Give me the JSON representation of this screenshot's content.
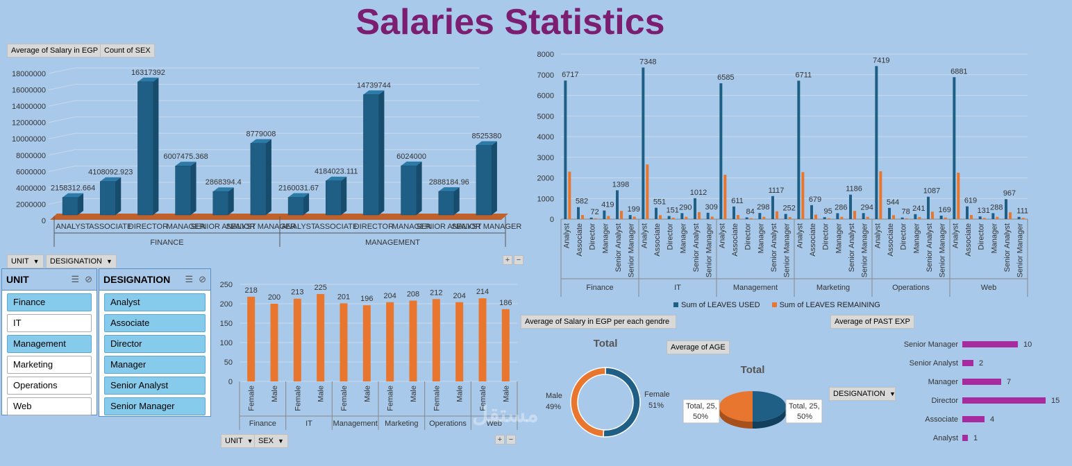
{
  "title": "Salaries Statistics",
  "colors": {
    "blue": "#1f5f86",
    "orange": "#e8762e",
    "purple": "#a62b9e",
    "title": "#7b1d70"
  },
  "chart1": {
    "field_buttons": [
      "Average of Salary in EGP",
      "Count of SEX"
    ],
    "bottom_buttons": [
      "UNIT",
      "DESIGNATION"
    ],
    "chart_data": {
      "type": "bar",
      "title": "",
      "groups": [
        "FINANCE",
        "MANAGEMENT"
      ],
      "categories": [
        "ANALYST",
        "ASSOCIATE",
        "DIRECTOR",
        "MANAGER",
        "SENIOR ANALYST",
        "SENIOR MANAGER",
        "ANALYST",
        "ASSOCIATE",
        "DIRECTOR",
        "MANAGER",
        "SENIOR ANALYST",
        "SENIOR MANAGER"
      ],
      "values": [
        2158312.664,
        4108092.923,
        16317392,
        6007475.368,
        2868394.4,
        8779008,
        2160031.67,
        4184023.111,
        14739744,
        6024000,
        2888184.96,
        8525380
      ],
      "value_labels": [
        "2158312.664",
        "4108092.923",
        "16317392",
        "6007475.368",
        "2868394.4",
        "8779008",
        "2160031.67",
        "4184023.111",
        "14739744",
        "6024000",
        "2888184.96",
        "8525380"
      ],
      "ylim": [
        0,
        18000000
      ],
      "yticks": [
        "0",
        "2000000",
        "4000000",
        "6000000",
        "8000000",
        "10000000",
        "12000000",
        "14000000",
        "16000000",
        "18000000"
      ]
    }
  },
  "chart2": {
    "chart_data": {
      "type": "bar",
      "groups": [
        "Finance",
        "IT",
        "Management",
        "Marketing",
        "Operations",
        "Web"
      ],
      "categories": [
        "Analyst",
        "Associate",
        "Director",
        "Manager",
        "Senior Analyst",
        "Senior Manager"
      ],
      "series": [
        {
          "name": "Sum of LEAVES USED",
          "values": [
            [
              6717,
              582,
              72,
              419,
              1398,
              199
            ],
            [
              7348,
              551,
              151,
              290,
              1012,
              309
            ],
            [
              6585,
              611,
              84,
              298,
              1117,
              252
            ],
            [
              6711,
              679,
              95,
              286,
              1186,
              294
            ],
            [
              7419,
              544,
              78,
              241,
              1087,
              169
            ],
            [
              6881,
              619,
              131,
              288,
              967,
              111
            ]
          ]
        },
        {
          "name": "Sum of LEAVES REMAINING",
          "values": [
            [
              2300,
              200,
              40,
              150,
              400,
              120
            ],
            [
              2650,
              190,
              70,
              110,
              340,
              120
            ],
            [
              2150,
              200,
              45,
              110,
              380,
              100
            ],
            [
              2280,
              220,
              45,
              110,
              400,
              110
            ],
            [
              2320,
              190,
              40,
              100,
              360,
              80
            ],
            [
              2250,
              200,
              60,
              110,
              330,
              60
            ]
          ]
        }
      ],
      "ylim": [
        0,
        8000
      ],
      "yticks": [
        "0",
        "1000",
        "2000",
        "3000",
        "4000",
        "5000",
        "6000",
        "7000",
        "8000"
      ],
      "legend": [
        "Sum of LEAVES USED",
        "Sum of LEAVES REMAINING"
      ]
    }
  },
  "chart3": {
    "bottom_buttons": [
      "UNIT",
      "SEX"
    ],
    "chart_data": {
      "type": "bar",
      "groups": [
        "Finance",
        "IT",
        "Management",
        "Marketing",
        "Operations",
        "Web"
      ],
      "categories": [
        "Female",
        "Male",
        "Female",
        "Male",
        "Female",
        "Male",
        "Female",
        "Male",
        "Female",
        "Male",
        "Female",
        "Male"
      ],
      "values": [
        218,
        200,
        213,
        225,
        201,
        196,
        204,
        208,
        212,
        204,
        214,
        186
      ],
      "ylim": [
        0,
        250
      ],
      "yticks": [
        "0",
        "50",
        "100",
        "150",
        "200",
        "250"
      ]
    }
  },
  "slicer_unit": {
    "title": "UNIT",
    "items": [
      {
        "label": "Finance",
        "selected": true
      },
      {
        "label": "IT",
        "selected": false
      },
      {
        "label": "Management",
        "selected": true
      },
      {
        "label": "Marketing",
        "selected": false
      },
      {
        "label": "Operations",
        "selected": false
      },
      {
        "label": "Web",
        "selected": false
      }
    ]
  },
  "slicer_designation": {
    "title": "DESIGNATION",
    "items": [
      {
        "label": "Analyst",
        "selected": true
      },
      {
        "label": "Associate",
        "selected": true
      },
      {
        "label": "Director",
        "selected": true
      },
      {
        "label": "Manager",
        "selected": true
      },
      {
        "label": "Senior Analyst",
        "selected": true
      },
      {
        "label": "Senior Manager",
        "selected": true
      }
    ]
  },
  "chart4": {
    "field_button": "Average of Salary in EGP per each gendre",
    "chart_data": {
      "type": "pie",
      "title": "Total",
      "labels": [
        "Female",
        "Male"
      ],
      "values": [
        51,
        49
      ],
      "label_text": [
        "Female\n51%",
        "Male\n49%"
      ]
    }
  },
  "chart5": {
    "field_button": "Average of AGE",
    "chart_data": {
      "type": "pie",
      "title": "Total",
      "values": [
        50,
        50
      ],
      "label_text": [
        "Total, 25,\n50%",
        "Total, 25,\n50%"
      ]
    }
  },
  "chart6": {
    "field_button": "Average of PAST EXP",
    "filter_button": "DESIGNATION",
    "chart_data": {
      "type": "bar",
      "orientation": "horizontal",
      "categories": [
        "Senior Manager",
        "Senior Analyst",
        "Manager",
        "Director",
        "Associate",
        "Analyst"
      ],
      "values": [
        10,
        2,
        7,
        15,
        4,
        1
      ],
      "xlim": [
        0,
        16
      ]
    }
  },
  "watermark": "مستقل"
}
